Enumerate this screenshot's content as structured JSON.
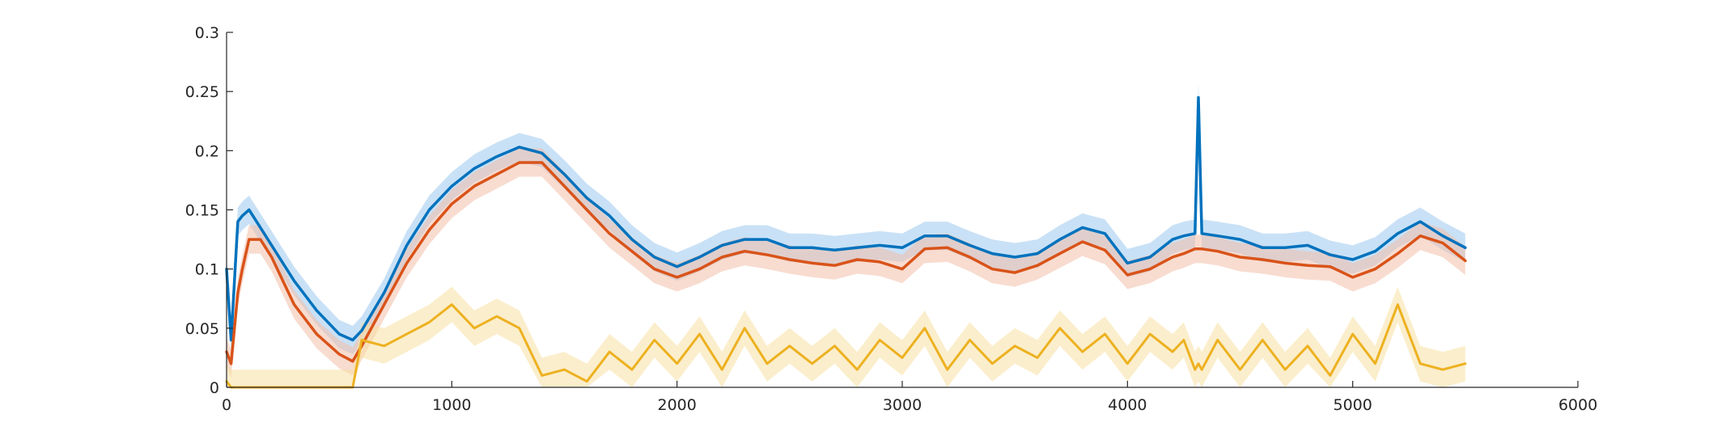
{
  "chart_data": {
    "type": "line",
    "title": "",
    "xlabel": "",
    "ylabel": "",
    "xlim": [
      0,
      6000
    ],
    "ylim": [
      0,
      0.3
    ],
    "grid": false,
    "legend": "none",
    "x_ticks": [
      0,
      1000,
      2000,
      3000,
      4000,
      5000,
      6000
    ],
    "x_tick_labels": [
      "0",
      "1000",
      "2000",
      "3000",
      "4000",
      "5000",
      "6000"
    ],
    "y_ticks": [
      0,
      0.05,
      0.1,
      0.15,
      0.2,
      0.25,
      0.3
    ],
    "y_tick_labels": [
      "0",
      "0.05",
      "0.1",
      "0.15",
      "0.2",
      "0.25",
      "0.3"
    ],
    "x": [
      0,
      20,
      50,
      70,
      100,
      150,
      200,
      300,
      400,
      500,
      560,
      600,
      700,
      800,
      900,
      1000,
      1100,
      1200,
      1300,
      1400,
      1500,
      1600,
      1700,
      1800,
      1900,
      2000,
      2100,
      2200,
      2300,
      2400,
      2500,
      2600,
      2700,
      2800,
      2900,
      3000,
      3100,
      3200,
      3300,
      3400,
      3500,
      3600,
      3700,
      3800,
      3900,
      4000,
      4100,
      4200,
      4250,
      4300,
      4315,
      4330,
      4400,
      4500,
      4600,
      4700,
      4800,
      4900,
      5000,
      5100,
      5200,
      5300,
      5400,
      5500
    ],
    "series": [
      {
        "color": "#0072BD",
        "band_color": "#9CC8EE",
        "line_width": 3.5,
        "values": [
          0.1,
          0.04,
          0.14,
          0.145,
          0.15,
          0.135,
          0.12,
          0.09,
          0.065,
          0.045,
          0.04,
          0.048,
          0.08,
          0.12,
          0.15,
          0.17,
          0.185,
          0.195,
          0.203,
          0.198,
          0.18,
          0.16,
          0.145,
          0.125,
          0.11,
          0.102,
          0.11,
          0.12,
          0.125,
          0.125,
          0.118,
          0.118,
          0.116,
          0.118,
          0.12,
          0.118,
          0.128,
          0.128,
          0.12,
          0.113,
          0.11,
          0.113,
          0.125,
          0.135,
          0.13,
          0.105,
          0.11,
          0.125,
          0.128,
          0.13,
          0.245,
          0.13,
          0.128,
          0.125,
          0.118,
          0.118,
          0.12,
          0.112,
          0.108,
          0.115,
          0.13,
          0.14,
          0.128,
          0.118
        ],
        "band_halfwidth": 0.012
      },
      {
        "color": "#D95319",
        "band_color": "#F3C0A9",
        "line_width": 3.5,
        "values": [
          0.03,
          0.02,
          0.08,
          0.1,
          0.125,
          0.125,
          0.11,
          0.07,
          0.045,
          0.028,
          0.022,
          0.035,
          0.07,
          0.105,
          0.133,
          0.155,
          0.17,
          0.18,
          0.19,
          0.19,
          0.17,
          0.15,
          0.13,
          0.115,
          0.1,
          0.093,
          0.1,
          0.11,
          0.115,
          0.112,
          0.108,
          0.105,
          0.103,
          0.108,
          0.106,
          0.1,
          0.117,
          0.118,
          0.11,
          0.1,
          0.097,
          0.103,
          0.113,
          0.123,
          0.116,
          0.095,
          0.1,
          0.11,
          0.113,
          0.117,
          0.117,
          0.117,
          0.115,
          0.11,
          0.108,
          0.105,
          0.103,
          0.102,
          0.093,
          0.1,
          0.113,
          0.128,
          0.122,
          0.107
        ],
        "band_halfwidth": 0.012
      },
      {
        "color": "#EDB120",
        "band_color": "#F8E0A2",
        "line_width": 3,
        "values": [
          0.005,
          0,
          0,
          0,
          0,
          0,
          0,
          0,
          0,
          0,
          0,
          0.04,
          0.035,
          0.045,
          0.055,
          0.07,
          0.05,
          0.06,
          0.05,
          0.01,
          0.015,
          0.005,
          0.03,
          0.015,
          0.04,
          0.02,
          0.045,
          0.015,
          0.05,
          0.02,
          0.035,
          0.02,
          0.035,
          0.015,
          0.04,
          0.025,
          0.05,
          0.015,
          0.04,
          0.02,
          0.035,
          0.025,
          0.05,
          0.03,
          0.045,
          0.02,
          0.045,
          0.03,
          0.04,
          0.015,
          0.02,
          0.015,
          0.04,
          0.015,
          0.04,
          0.015,
          0.035,
          0.01,
          0.045,
          0.02,
          0.07,
          0.02,
          0.015,
          0.02
        ],
        "band_halfwidth": 0.015
      }
    ]
  }
}
